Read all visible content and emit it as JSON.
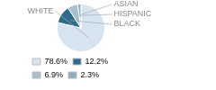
{
  "chart_data": {
    "type": "pie",
    "categories": [
      "WHITE",
      "BLACK",
      "HISPANIC",
      "ASIAN"
    ],
    "values": [
      78.6,
      12.2,
      6.9,
      2.3
    ],
    "value_labels": [
      "78.6%",
      "12.2%",
      "6.9%",
      "2.3%"
    ],
    "colors": [
      "#d6e4f0",
      "#2e6b8a",
      "#a8bfcc",
      "#8fafc0"
    ],
    "legend": "lower left"
  }
}
